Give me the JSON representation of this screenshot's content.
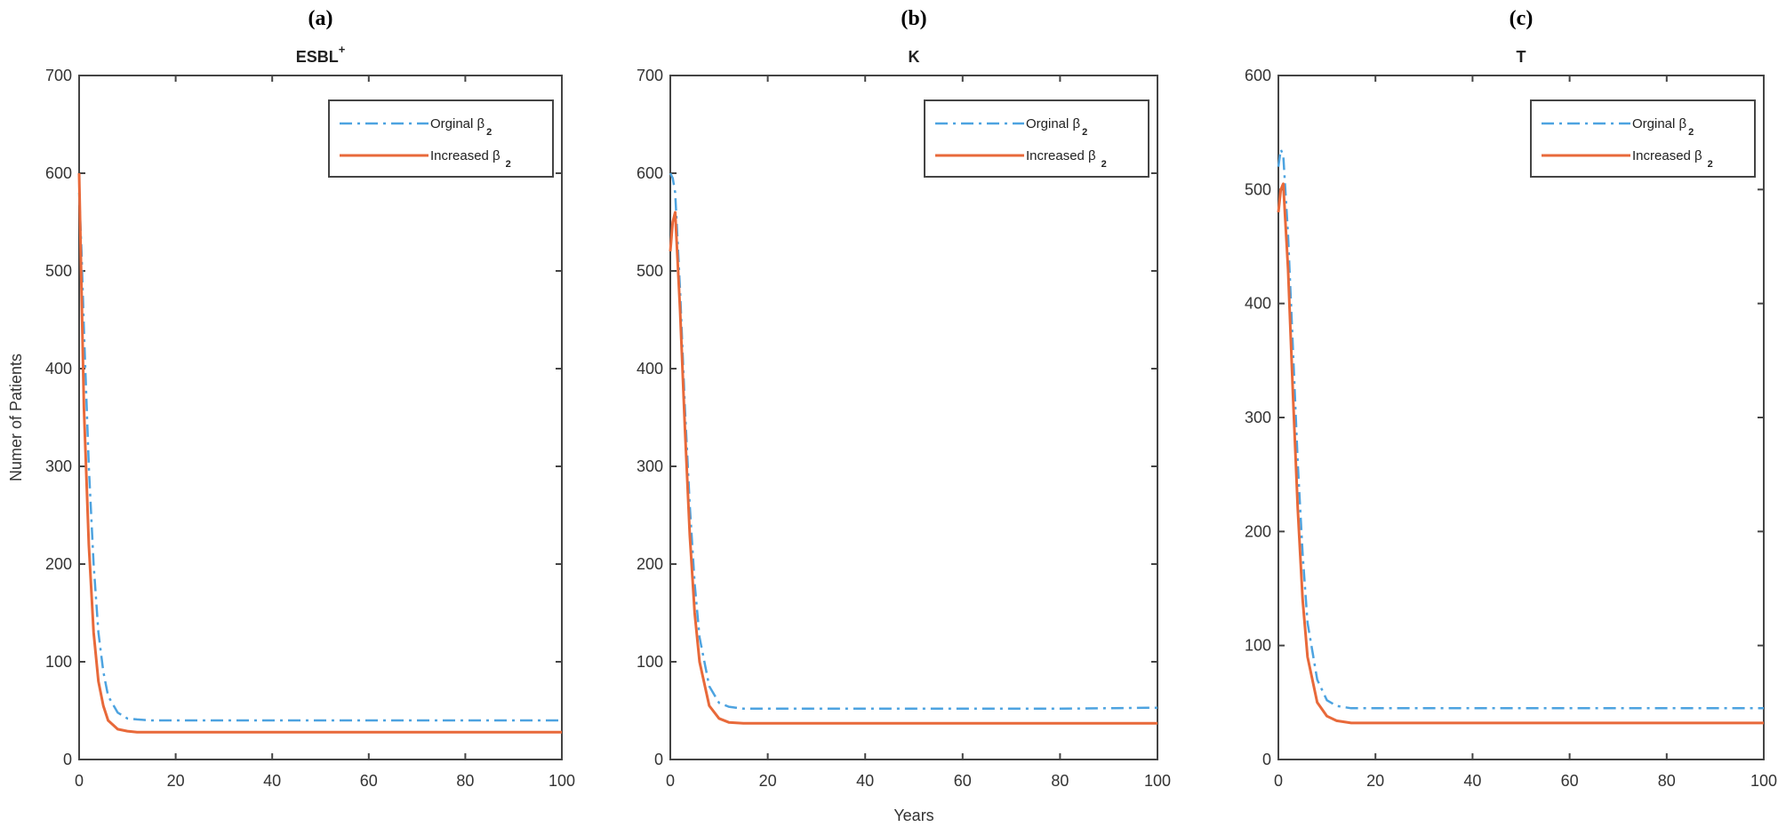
{
  "chart_data": [
    {
      "type": "line",
      "panel_label": "(a)",
      "title": "ESBL",
      "title_sup": "+",
      "xlabel": "",
      "ylabel": "Numer of Patients",
      "xlim": [
        0,
        100
      ],
      "ylim": [
        0,
        700
      ],
      "xticks": [
        0,
        20,
        40,
        60,
        80,
        100
      ],
      "yticks": [
        0,
        100,
        200,
        300,
        400,
        500,
        600,
        700
      ],
      "legend_position": "top-right",
      "x": [
        0,
        0.5,
        1,
        2,
        3,
        4,
        5,
        6,
        8,
        10,
        12,
        15,
        20,
        40,
        60,
        80,
        100
      ],
      "series": [
        {
          "name": "Orginal β",
          "sub": "2",
          "color": "#4DA3E0",
          "style": "dashdot",
          "values": [
            580,
            520,
            440,
            300,
            200,
            130,
            90,
            65,
            48,
            42,
            41,
            40,
            40,
            40,
            40,
            40,
            40
          ]
        },
        {
          "name": "Increased β",
          "sub": "2",
          "color": "#E8693A",
          "style": "solid",
          "values": [
            600,
            480,
            360,
            220,
            130,
            80,
            55,
            40,
            31,
            29,
            28,
            28,
            28,
            28,
            28,
            28,
            28
          ]
        }
      ]
    },
    {
      "type": "line",
      "panel_label": "(b)",
      "title": "K",
      "title_sup": "",
      "xlabel": "Years",
      "ylabel": "",
      "xlim": [
        0,
        100
      ],
      "ylim": [
        0,
        700
      ],
      "xticks": [
        0,
        20,
        40,
        60,
        80,
        100
      ],
      "yticks": [
        0,
        100,
        200,
        300,
        400,
        500,
        600,
        700
      ],
      "legend_position": "top-right",
      "x": [
        0,
        0.5,
        1,
        2,
        3,
        4,
        5,
        6,
        8,
        10,
        12,
        15,
        20,
        40,
        60,
        80,
        100
      ],
      "series": [
        {
          "name": "Orginal β",
          "sub": "2",
          "color": "#4DA3E0",
          "style": "dashdot",
          "values": [
            600,
            595,
            580,
            480,
            360,
            260,
            180,
            125,
            75,
            58,
            54,
            52,
            52,
            52,
            52,
            52,
            53
          ]
        },
        {
          "name": "Increased β",
          "sub": "2",
          "color": "#E8693A",
          "style": "solid",
          "values": [
            520,
            550,
            560,
            460,
            340,
            230,
            150,
            100,
            55,
            42,
            38,
            37,
            37,
            37,
            37,
            37,
            37
          ]
        }
      ]
    },
    {
      "type": "line",
      "panel_label": "(c)",
      "title": "T",
      "title_sup": "",
      "xlabel": "",
      "ylabel": "",
      "xlim": [
        0,
        100
      ],
      "ylim": [
        0,
        600
      ],
      "xticks": [
        0,
        20,
        40,
        60,
        80,
        100
      ],
      "yticks": [
        0,
        100,
        200,
        300,
        400,
        500,
        600
      ],
      "legend_position": "top-right",
      "x": [
        0,
        0.5,
        1,
        2,
        3,
        4,
        5,
        6,
        8,
        10,
        12,
        15,
        20,
        40,
        60,
        80,
        100
      ],
      "series": [
        {
          "name": "Orginal β",
          "sub": "2",
          "color": "#4DA3E0",
          "style": "dashdot",
          "values": [
            520,
            535,
            530,
            460,
            360,
            260,
            180,
            120,
            70,
            52,
            47,
            45,
            45,
            45,
            45,
            45,
            45
          ]
        },
        {
          "name": "Increased β",
          "sub": "2",
          "color": "#E8693A",
          "style": "solid",
          "values": [
            480,
            500,
            505,
            430,
            320,
            220,
            140,
            90,
            50,
            38,
            34,
            32,
            32,
            32,
            32,
            32,
            32
          ]
        }
      ]
    }
  ]
}
